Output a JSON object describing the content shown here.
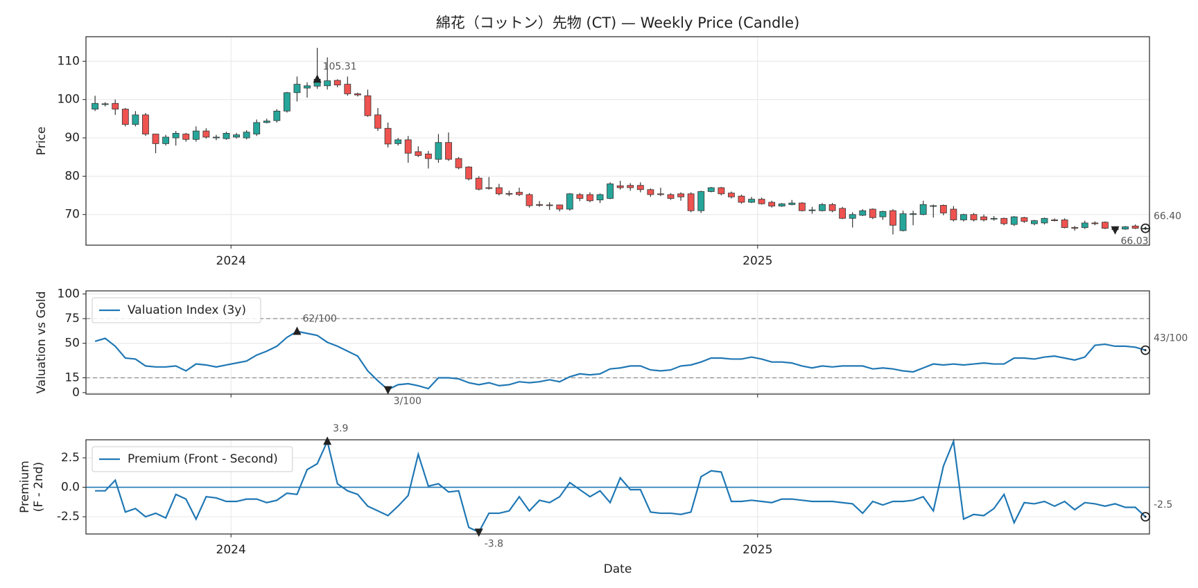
{
  "title": "綿花（コットン）先物 (CT) — Weekly Price (Candle)",
  "xlabel": "Date",
  "chart_data": [
    {
      "type": "candlestick",
      "ylabel": "Price",
      "xlim": [
        -0.9,
        104.4
      ],
      "xticks": [
        {
          "value": 13.46,
          "label": "2024"
        },
        {
          "value": 65.6,
          "label": "2025"
        }
      ],
      "ylim": [
        62,
        116.4
      ],
      "yticks": [
        70,
        80,
        90,
        100,
        110
      ],
      "grid": true,
      "up_color": "#26a69a",
      "down_color": "#ef5350",
      "open": [
        97.5,
        98.7,
        99,
        97.5,
        93.5,
        96,
        91,
        88.5,
        90,
        91,
        89.6,
        91.8,
        90,
        89.8,
        90.2,
        90,
        91,
        94,
        94.5,
        97,
        101.8,
        103,
        103.5,
        103.6,
        105,
        104,
        101.5,
        101,
        96,
        92.5,
        88.5,
        89.5,
        86.4,
        85.8,
        84.4,
        88.8,
        84.6,
        82.4,
        79.5,
        77,
        77,
        75.5,
        75.8,
        75.2,
        72.6,
        72.5,
        72.5,
        71.4,
        75.2,
        75.2,
        73.8,
        74.2,
        77.5,
        77.6,
        77.6,
        76.5,
        75.4,
        75.2,
        75.4,
        75.4,
        71,
        76,
        77,
        75.6,
        74.8,
        73.2,
        74,
        73.2,
        72.2,
        72.6,
        73,
        71,
        71,
        72.6,
        71.6,
        69,
        69.8,
        71.4,
        69.4,
        71,
        65.8,
        70,
        70,
        72.2,
        72.4,
        71.4,
        68.6,
        70,
        69.4,
        68.8,
        69,
        67.4,
        69.2,
        67.6,
        67.8,
        68.6,
        68.6,
        66.6,
        66.6,
        67.8,
        68,
        66.4,
        66.2,
        67,
        66.2
      ],
      "high": [
        101,
        99.3,
        100,
        97.8,
        97,
        96.5,
        91,
        90.8,
        91.8,
        91.3,
        93,
        92.5,
        90.8,
        91.6,
        91.3,
        92,
        94.8,
        95,
        97.5,
        102,
        106,
        104.5,
        113.5,
        111,
        105.3,
        106,
        101.8,
        102.6,
        97.8,
        94,
        90,
        90.5,
        87.8,
        86.6,
        91,
        91.4,
        85,
        82.6,
        80,
        79.8,
        78,
        76.2,
        77,
        75.6,
        73.5,
        73.2,
        72.6,
        75.6,
        75.6,
        75.8,
        75.5,
        78.4,
        78.8,
        78.2,
        78.4,
        76.8,
        77,
        75.6,
        75.8,
        75.8,
        76.2,
        77.2,
        77.2,
        76,
        75.2,
        74.6,
        74.4,
        73.6,
        73,
        73.8,
        73.2,
        72,
        73,
        73,
        72,
        70.6,
        71.4,
        71.6,
        71,
        71.4,
        71,
        71,
        73.6,
        72.6,
        72.6,
        72.2,
        70.2,
        70.4,
        70,
        69.6,
        69.2,
        69.6,
        69.4,
        68.6,
        69.2,
        69,
        69,
        67,
        68.4,
        68.2,
        68.2,
        66.6,
        67,
        67.4,
        66.8
      ],
      "low": [
        97,
        98.2,
        96,
        93,
        93,
        90.5,
        86,
        88,
        88,
        89,
        89,
        89.8,
        89.4,
        89.5,
        89.8,
        89.6,
        90.5,
        93.8,
        94,
        96.6,
        99.5,
        100.5,
        102.8,
        102.6,
        103.2,
        101,
        100.8,
        95.5,
        91.8,
        87.5,
        88,
        83.5,
        85,
        82,
        83.5,
        84,
        81.8,
        78.9,
        76.3,
        76.5,
        75,
        74.8,
        74.8,
        71.8,
        72,
        71.2,
        70.8,
        71,
        73.5,
        73.2,
        73,
        74,
        76.5,
        76.2,
        75.8,
        74.6,
        74.8,
        73.8,
        73.6,
        70.6,
        70.4,
        75.8,
        75,
        74.2,
        72.8,
        73,
        72.6,
        71.8,
        72,
        72.4,
        70.8,
        70.2,
        70.8,
        70.6,
        68.8,
        66.6,
        69.6,
        68.8,
        68.6,
        64.8,
        65.6,
        67.2,
        69.8,
        69.2,
        69.8,
        68.2,
        68.2,
        68.2,
        68.2,
        68.4,
        67.2,
        67,
        67.8,
        67.2,
        67.4,
        68.2,
        66.4,
        65.8,
        66.2,
        67.2,
        66.2,
        66,
        66,
        66.2,
        66
      ],
      "close": [
        99,
        98.9,
        97.5,
        93.5,
        96,
        91,
        88.5,
        90.2,
        91.2,
        89.6,
        91.8,
        90.2,
        90.2,
        91.2,
        90.8,
        91.5,
        94,
        94.4,
        97,
        101.8,
        104,
        103.6,
        105.31,
        104.9,
        103.8,
        101.5,
        101.2,
        95.8,
        92.5,
        88.4,
        89.5,
        86,
        85.4,
        84.6,
        88.8,
        84.4,
        82.2,
        79.3,
        76.6,
        76.8,
        75.4,
        75.3,
        75.2,
        72.3,
        72.4,
        72.4,
        71.4,
        75.4,
        74.2,
        73.6,
        75.2,
        78,
        77,
        77,
        76.5,
        75.2,
        75.2,
        74.2,
        74.6,
        71,
        76,
        77,
        75.4,
        74.6,
        73.2,
        74,
        72.8,
        72.2,
        72.8,
        73,
        71,
        71.2,
        72.6,
        71,
        69,
        70,
        71,
        69.2,
        70.8,
        67.2,
        70.2,
        70.2,
        72.6,
        72.3,
        70.4,
        68.6,
        70,
        68.6,
        68.6,
        69,
        67.6,
        69.4,
        68.2,
        68.4,
        69,
        68.4,
        66.6,
        66.4,
        67.8,
        67.6,
        66.4,
        66.03,
        66.8,
        66.4,
        66.4
      ],
      "markers": [
        {
          "index": 22,
          "label": "105.31",
          "shape": "max"
        },
        {
          "index": 101,
          "label": "66.03",
          "shape": "min"
        },
        {
          "index": 104,
          "label": "66.40",
          "shape": "last"
        }
      ]
    },
    {
      "type": "line",
      "ylabel": "Valuation vs Gold",
      "xlim": [
        -0.9,
        104.4
      ],
      "ylim": [
        -1.5,
        103.1
      ],
      "yticks": [
        0,
        15,
        50,
        75,
        100
      ],
      "grid": true,
      "hlines": [
        {
          "value": 75,
          "style": "dashed",
          "color": "#8c8c8c"
        },
        {
          "value": 15,
          "style": "dashed",
          "color": "#8c8c8c"
        }
      ],
      "legend": "upper left",
      "series": [
        {
          "name": "Valuation Index (3y)",
          "color": "#1f77b4",
          "values": [
            52,
            55,
            47,
            35,
            34,
            27,
            26,
            26,
            27,
            22,
            29,
            28,
            26,
            28,
            30,
            32,
            38,
            42,
            47,
            56,
            62,
            60,
            58,
            51,
            47,
            42,
            37,
            22,
            12,
            3,
            8,
            9,
            7,
            4,
            15,
            15,
            14,
            10,
            8,
            10,
            7,
            8,
            11,
            10,
            11,
            13,
            11,
            16,
            19,
            18,
            19,
            24,
            25,
            27,
            27,
            23,
            22,
            23,
            27,
            28,
            31,
            35,
            35,
            34,
            34,
            36,
            34,
            31,
            31,
            30,
            27,
            25,
            27,
            26,
            27,
            27,
            27,
            24,
            25,
            24,
            22,
            21,
            25,
            29,
            28,
            29,
            28,
            29,
            30,
            29,
            29,
            35,
            35,
            34,
            36,
            37,
            35,
            33,
            36,
            48,
            49,
            47,
            47,
            46,
            43
          ]
        }
      ],
      "markers": [
        {
          "index": 20,
          "label": "62/100",
          "shape": "max"
        },
        {
          "index": 29,
          "label": "3/100",
          "shape": "min"
        },
        {
          "index": 104,
          "label": "43/100",
          "shape": "last"
        }
      ]
    },
    {
      "type": "line",
      "ylabel": [
        "Premium",
        "(F - 2nd)"
      ],
      "xlim": [
        -0.9,
        104.4
      ],
      "xticks": [
        {
          "value": 13.46,
          "label": "2024"
        },
        {
          "value": 65.6,
          "label": "2025"
        }
      ],
      "ylim": [
        -3.96,
        4.03
      ],
      "yticks": [
        -2.5,
        {
          "value": 0,
          "label": "0.0"
        },
        2.5
      ],
      "grid": true,
      "hlines": [
        {
          "value": 0,
          "style": "solid",
          "color": "#1f77b4"
        }
      ],
      "legend": "upper left",
      "series": [
        {
          "name": "Premium (Front - Second)",
          "color": "#1f77b4",
          "values": [
            -0.3,
            -0.3,
            0.6,
            -2.1,
            -1.8,
            -2.5,
            -2.2,
            -2.6,
            -0.6,
            -1.0,
            -2.7,
            -0.8,
            -0.9,
            -1.2,
            -1.2,
            -1.0,
            -1.0,
            -1.3,
            -1.1,
            -0.5,
            -0.6,
            1.5,
            2.0,
            3.9,
            0.3,
            -0.3,
            -0.6,
            -1.6,
            -2.0,
            -2.4,
            -1.6,
            -0.7,
            2.8,
            0.1,
            0.3,
            -0.4,
            -0.3,
            -3.4,
            -3.8,
            -2.2,
            -2.2,
            -2.0,
            -0.8,
            -2.0,
            -1.1,
            -1.3,
            -0.8,
            0.4,
            -0.2,
            -0.8,
            -0.3,
            -1.3,
            0.8,
            -0.2,
            -0.2,
            -2.1,
            -2.2,
            -2.2,
            -2.3,
            -2.1,
            0.9,
            1.4,
            1.3,
            -1.2,
            -1.2,
            -1.1,
            -1.2,
            -1.3,
            -1.0,
            -1.0,
            -1.1,
            -1.2,
            -1.2,
            -1.2,
            -1.3,
            -1.4,
            -2.2,
            -1.2,
            -1.5,
            -1.2,
            -1.2,
            -1.1,
            -0.8,
            -2.0,
            1.8,
            3.9,
            -2.7,
            -2.3,
            -2.4,
            -1.8,
            -0.6,
            -3.0,
            -1.3,
            -1.4,
            -1.2,
            -1.6,
            -1.2,
            -1.9,
            -1.3,
            -1.4,
            -1.6,
            -1.4,
            -1.7,
            -1.7,
            -2.5
          ]
        }
      ],
      "markers": [
        {
          "index": 23,
          "label": "3.9",
          "shape": "max"
        },
        {
          "index": 38,
          "label": "-3.8",
          "shape": "min"
        },
        {
          "index": 104,
          "label": "-2.5",
          "shape": "last"
        }
      ]
    }
  ]
}
